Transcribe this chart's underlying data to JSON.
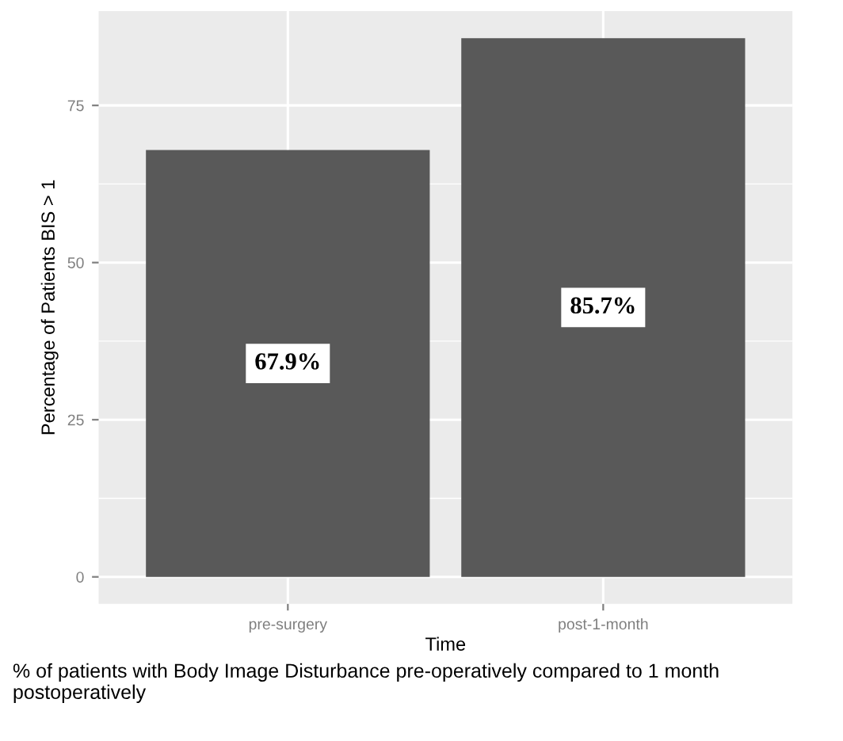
{
  "chart_data": {
    "type": "bar",
    "categories": [
      "pre-surgery",
      "post-1-month"
    ],
    "values": [
      67.9,
      85.7
    ],
    "value_labels": [
      "67.9%",
      "85.7%"
    ],
    "color": "#595959",
    "xlabel": "Time",
    "ylabel": "Percentage of Patients BIS > 1",
    "ylim": [
      -4.3,
      90
    ],
    "yticks": [
      0,
      25,
      50,
      75
    ],
    "grid": true,
    "annotations": [
      "% of patients with Body Image Disturbance pre-operatively compared to 1 month postoperatively"
    ]
  }
}
